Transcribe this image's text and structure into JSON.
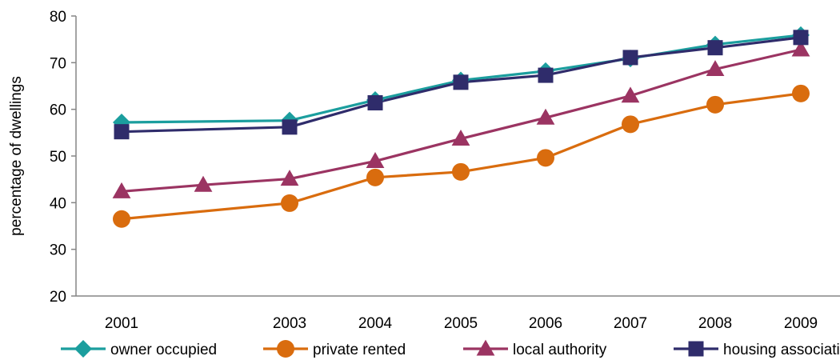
{
  "chart_data": {
    "type": "line",
    "title": "",
    "xlabel": "",
    "ylabel": "percentage of  dwellings",
    "x": [
      2001,
      2002,
      2003,
      2004,
      2005,
      2006,
      2007,
      2008,
      2009
    ],
    "x_tick_labels": [
      "2001",
      "",
      "2003",
      "2004",
      "2005",
      "2006",
      "2007",
      "2008",
      "2009"
    ],
    "ylim": [
      20,
      80
    ],
    "y_ticks": [
      20,
      30,
      40,
      50,
      60,
      70,
      80
    ],
    "grid": false,
    "legend_position": "bottom",
    "series": [
      {
        "name": "owner occupied",
        "color": "#1B9E9E",
        "marker": "diamond",
        "points": [
          [
            2001,
            57.2
          ],
          [
            2003,
            57.6
          ],
          [
            2004,
            62.0
          ],
          [
            2005,
            66.2
          ],
          [
            2006,
            68.2
          ],
          [
            2007,
            70.9
          ],
          [
            2008,
            73.9
          ],
          [
            2009,
            75.9
          ]
        ]
      },
      {
        "name": "private rented",
        "color": "#D96C0E",
        "marker": "circle",
        "points": [
          [
            2001,
            36.5
          ],
          [
            2003,
            39.9
          ],
          [
            2004,
            45.4
          ],
          [
            2005,
            46.6
          ],
          [
            2006,
            49.6
          ],
          [
            2007,
            56.8
          ],
          [
            2008,
            61.0
          ],
          [
            2009,
            63.4
          ]
        ]
      },
      {
        "name": "local authority",
        "color": "#9B3462",
        "marker": "triangle",
        "points": [
          [
            2001,
            42.4
          ],
          [
            2002,
            43.8
          ],
          [
            2003,
            45.1
          ],
          [
            2004,
            48.9
          ],
          [
            2005,
            53.7
          ],
          [
            2006,
            58.2
          ],
          [
            2007,
            62.9
          ],
          [
            2008,
            68.6
          ],
          [
            2009,
            72.8
          ]
        ]
      },
      {
        "name": "housing association",
        "color": "#2F2C6B",
        "marker": "square",
        "points": [
          [
            2001,
            55.2
          ],
          [
            2003,
            56.2
          ],
          [
            2004,
            61.4
          ],
          [
            2005,
            65.8
          ],
          [
            2006,
            67.3
          ],
          [
            2007,
            71.1
          ],
          [
            2008,
            73.2
          ],
          [
            2009,
            75.4
          ]
        ]
      }
    ]
  }
}
